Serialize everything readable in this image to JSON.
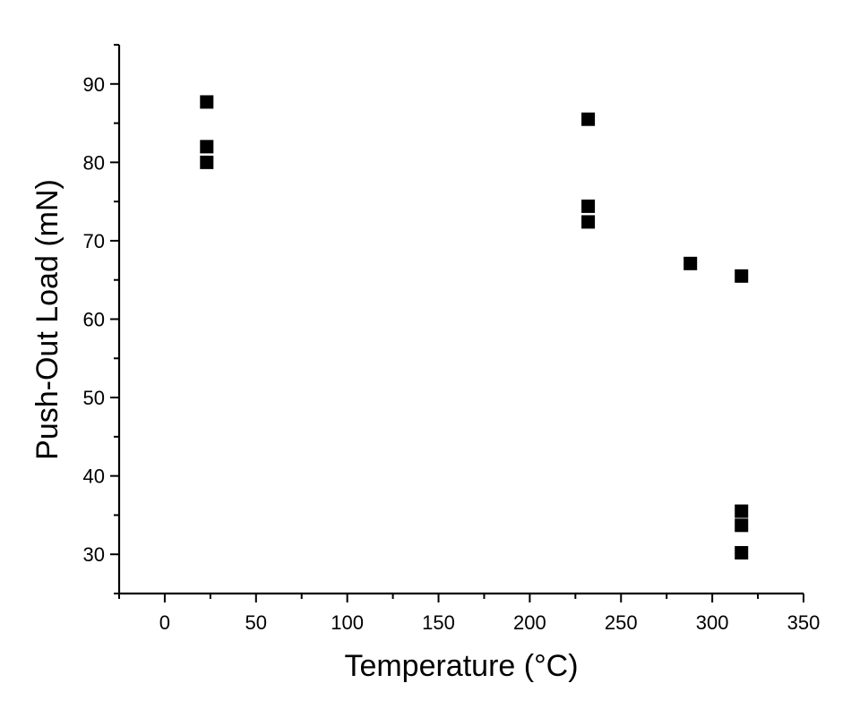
{
  "chart_data": {
    "type": "scatter",
    "title": "",
    "xlabel": "Temperature (°C)",
    "ylabel": "Push-Out Load (mN)",
    "xlim": [
      -25,
      350
    ],
    "ylim": [
      25,
      95
    ],
    "x_ticks": [
      0,
      50,
      100,
      150,
      200,
      250,
      300,
      350
    ],
    "y_ticks": [
      30,
      40,
      50,
      60,
      70,
      80,
      90
    ],
    "x_minor_step": 25,
    "y_minor_step": 5,
    "grid": false,
    "marker": "square",
    "marker_color": "#000000",
    "series": [
      {
        "points": [
          {
            "x": 23,
            "y": 87.7
          },
          {
            "x": 23,
            "y": 82.0
          },
          {
            "x": 23,
            "y": 80.0
          },
          {
            "x": 232,
            "y": 85.5
          },
          {
            "x": 232,
            "y": 74.4
          },
          {
            "x": 232,
            "y": 72.4
          },
          {
            "x": 288,
            "y": 67.1
          },
          {
            "x": 316,
            "y": 65.5
          },
          {
            "x": 316,
            "y": 35.5
          },
          {
            "x": 316,
            "y": 33.7
          },
          {
            "x": 316,
            "y": 30.2
          }
        ]
      }
    ]
  }
}
